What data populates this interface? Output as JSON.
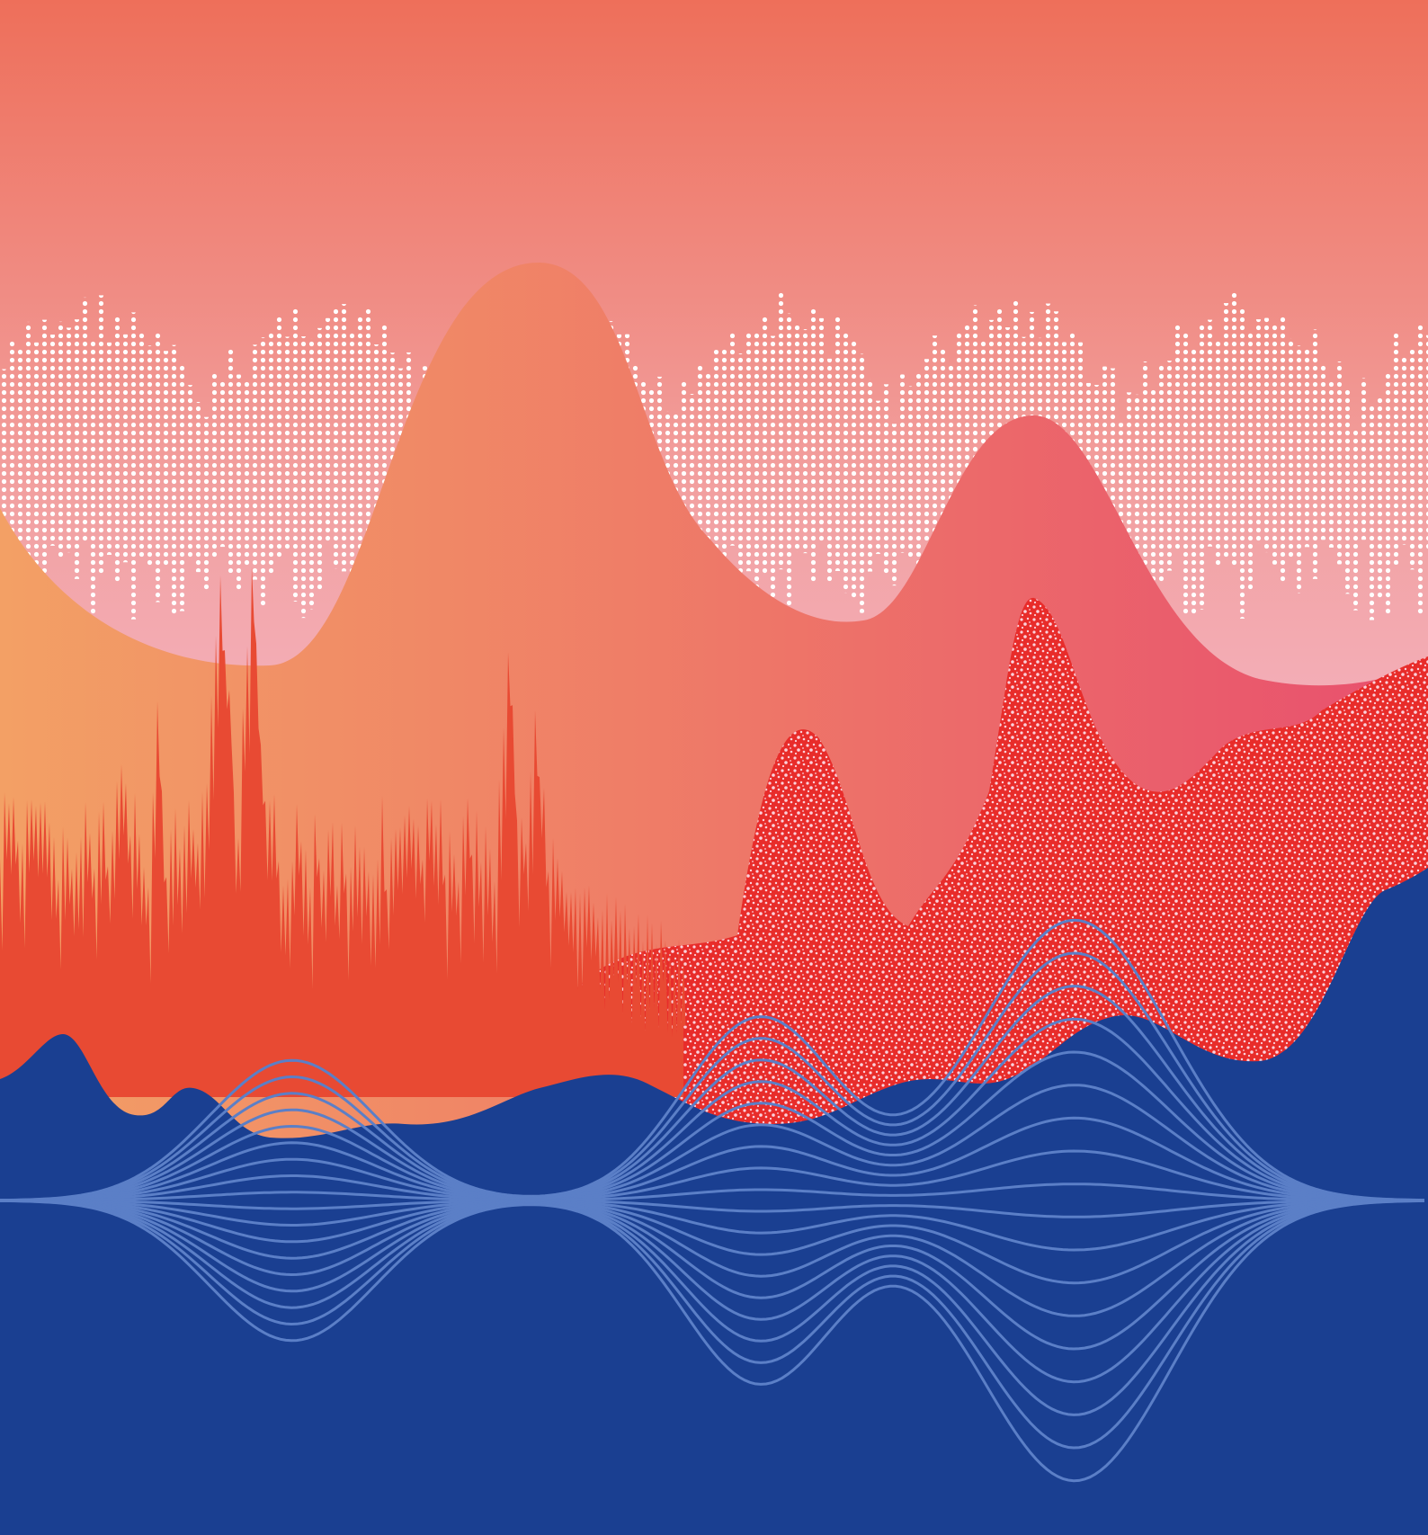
{
  "artwork": {
    "layers": [
      "halftone-waveform",
      "orange-pink-gradient-hills",
      "red-spectrum-spikes",
      "speckled-noise-peaks",
      "blue-ground",
      "wave-packet-line-bundles"
    ]
  },
  "colors": {
    "sky_top": "#ee6f5a",
    "sky_mid": "#f2a0a0",
    "sky_bottom": "#f5bfd4",
    "halftone": "#ffffff",
    "hills_left": "#f3a065",
    "hills_mid": "#ef7d67",
    "hills_right": "#e84f6e",
    "spikes": "#e84a33",
    "speckle_base": "#e82c2a",
    "speckle_dots": "#fbd2dc",
    "blue_ground": "#1a3f91",
    "wave_lines": "#5b7fc7"
  }
}
